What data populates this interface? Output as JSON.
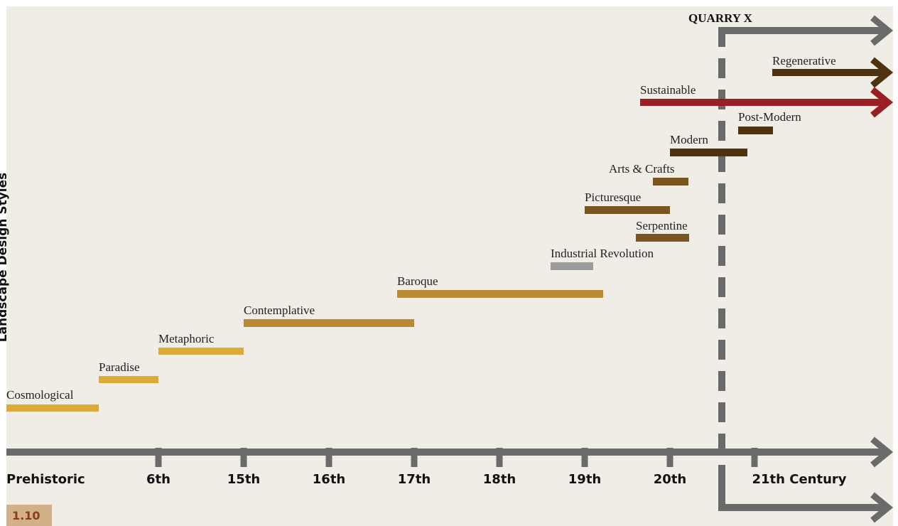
{
  "title": "QUARRY X",
  "y_axis_label": "Landscape Design Styles",
  "figure_number": "1.10",
  "time_labels": [
    "Prehistoric",
    "6th",
    "15th",
    "16th",
    "17th",
    "18th",
    "19th",
    "20th",
    "21th Century"
  ],
  "styles": [
    {
      "label": "Cosmological",
      "color": "#dcaa37"
    },
    {
      "label": "Paradise",
      "color": "#dcaa37"
    },
    {
      "label": "Metaphoric",
      "color": "#dcaa37"
    },
    {
      "label": "Contemplative",
      "color": "#b88a31"
    },
    {
      "label": "Baroque",
      "color": "#b88a31"
    },
    {
      "label": "Industrial Revolution",
      "color": "#9b9b9b"
    },
    {
      "label": "Serpentine",
      "color": "#7b5520"
    },
    {
      "label": "Picturesque",
      "color": "#7b5520"
    },
    {
      "label": "Arts & Crafts",
      "color": "#7b5520"
    },
    {
      "label": "Modern",
      "color": "#4f3210"
    },
    {
      "label": "Post-Modern",
      "color": "#4f3210"
    },
    {
      "label": "Sustainable",
      "color": "#9a1f24"
    },
    {
      "label": "Regenerative",
      "color": "#4f3210"
    }
  ],
  "colors": {
    "axis": "#6a6a6a",
    "background": "#f0ece6"
  }
}
